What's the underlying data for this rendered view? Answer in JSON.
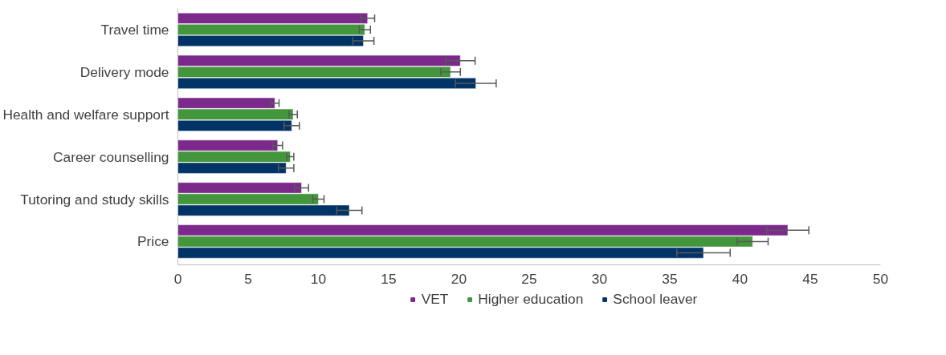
{
  "chart_data": {
    "type": "bar",
    "orientation": "horizontal",
    "categories": [
      "Travel time",
      "Delivery mode",
      "Health and welfare support",
      "Career counselling",
      "Tutoring and study skills",
      "Price"
    ],
    "series": [
      {
        "name": "VET",
        "color": "#7b2a8b",
        "values": [
          13.5,
          20.1,
          6.9,
          7.1,
          8.8,
          43.4
        ],
        "errors": [
          0.5,
          1.05,
          0.3,
          0.35,
          0.5,
          1.5
        ]
      },
      {
        "name": "Higher education",
        "color": "#43963b",
        "values": [
          13.3,
          19.4,
          8.2,
          8.0,
          10.0,
          40.9
        ],
        "errors": [
          0.4,
          0.7,
          0.3,
          0.25,
          0.4,
          1.1
        ]
      },
      {
        "name": "School leaver",
        "color": "#003366",
        "values": [
          13.2,
          21.2,
          8.1,
          7.7,
          12.2,
          37.4
        ],
        "errors": [
          0.75,
          1.45,
          0.55,
          0.55,
          0.9,
          1.9
        ]
      }
    ],
    "xlim": [
      0,
      50
    ],
    "xticks": [
      0,
      5,
      10,
      15,
      20,
      25,
      30,
      35,
      40,
      45,
      50
    ],
    "grid": false,
    "legend": "bottom"
  }
}
